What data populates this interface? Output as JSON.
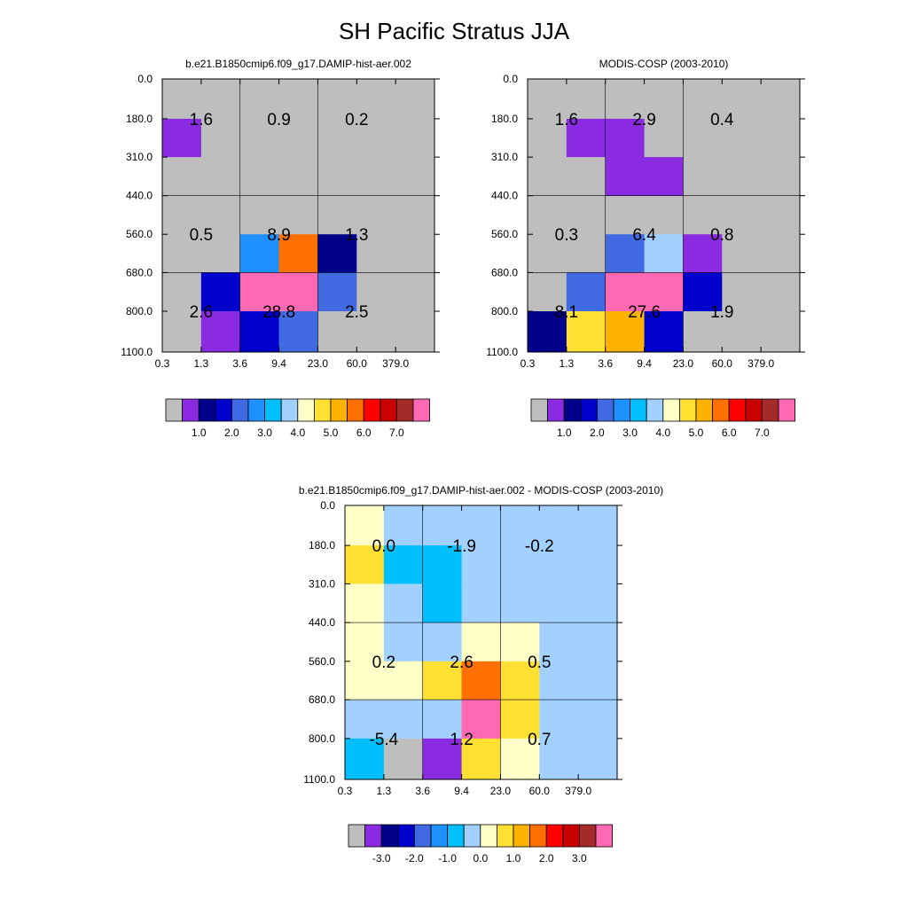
{
  "title": "SH Pacific Stratus JJA",
  "colors": {
    "gray": "#bebebe",
    "palette": [
      "#8a2be2",
      "#00008b",
      "#0000cd",
      "#4169e1",
      "#1e90ff",
      "#00bfff",
      "#a3d1ff",
      "#ffffc8",
      "#ffe033",
      "#ffb200",
      "#ff7000",
      "#ff0000",
      "#c80000",
      "#a52a2a",
      "#ff69b4"
    ]
  },
  "chart_data": [
    {
      "type": "heatmap",
      "title": "b.e21.B1850cmip6.f09_g17.DAMIP-hist-aer.002",
      "x_ticks": [
        "0.3",
        "1.3",
        "3.6",
        "9.4",
        "23.0",
        "60.0",
        "379.0"
      ],
      "y_ticks": [
        "0.0",
        "180.0",
        "310.0",
        "440.0",
        "560.0",
        "680.0",
        "800.0",
        "1100.0"
      ],
      "cells": [
        [
          0,
          0,
          0,
          0,
          0,
          0,
          0
        ],
        [
          1,
          0,
          0,
          0,
          0,
          0,
          0
        ],
        [
          0,
          0,
          0,
          0,
          0,
          0,
          0
        ],
        [
          0,
          0,
          0,
          0,
          0,
          0,
          0
        ],
        [
          0,
          0,
          5,
          11,
          2,
          0,
          0
        ],
        [
          0,
          3,
          15,
          15,
          4,
          0,
          0
        ],
        [
          0,
          1,
          3,
          4,
          0,
          0,
          0
        ]
      ],
      "labels": [
        {
          "x": "1.3",
          "y": "180.0",
          "text": "1.6"
        },
        {
          "x": "9.4",
          "y": "180.0",
          "text": "0.9"
        },
        {
          "x": "60.0",
          "y": "180.0",
          "text": "0.2"
        },
        {
          "x": "1.3",
          "y": "560.0",
          "text": "0.5"
        },
        {
          "x": "9.4",
          "y": "560.0",
          "text": "8.9"
        },
        {
          "x": "60.0",
          "y": "560.0",
          "text": "1.3"
        },
        {
          "x": "1.3",
          "y": "800.0",
          "text": "2.6"
        },
        {
          "x": "9.4",
          "y": "800.0",
          "text": "28.8"
        },
        {
          "x": "60.0",
          "y": "800.0",
          "text": "2.5"
        }
      ],
      "colorbar_ticks": [
        "1.0",
        "2.0",
        "3.0",
        "4.0",
        "5.0",
        "6.0",
        "7.0"
      ]
    },
    {
      "type": "heatmap",
      "title": "MODIS-COSP (2003-2010)",
      "x_ticks": [
        "0.3",
        "1.3",
        "3.6",
        "9.4",
        "23.0",
        "60.0",
        "379.0"
      ],
      "y_ticks": [
        "0.0",
        "180.0",
        "310.0",
        "440.0",
        "560.0",
        "680.0",
        "800.0",
        "1100.0"
      ],
      "cells": [
        [
          0,
          0,
          0,
          0,
          0,
          0,
          0
        ],
        [
          0,
          1,
          1,
          0,
          0,
          0,
          0
        ],
        [
          0,
          0,
          1,
          1,
          0,
          0,
          0
        ],
        [
          0,
          0,
          0,
          0,
          0,
          0,
          0
        ],
        [
          0,
          0,
          4,
          7,
          1,
          0,
          0
        ],
        [
          0,
          4,
          15,
          15,
          3,
          0,
          0
        ],
        [
          2,
          9,
          10,
          3,
          0,
          0,
          0
        ]
      ],
      "labels": [
        {
          "x": "1.3",
          "y": "180.0",
          "text": "1.6"
        },
        {
          "x": "9.4",
          "y": "180.0",
          "text": "2.9"
        },
        {
          "x": "60.0",
          "y": "180.0",
          "text": "0.4"
        },
        {
          "x": "1.3",
          "y": "560.0",
          "text": "0.3"
        },
        {
          "x": "9.4",
          "y": "560.0",
          "text": "6.4"
        },
        {
          "x": "60.0",
          "y": "560.0",
          "text": "0.8"
        },
        {
          "x": "1.3",
          "y": "800.0",
          "text": "8.1"
        },
        {
          "x": "9.4",
          "y": "800.0",
          "text": "27.6"
        },
        {
          "x": "60.0",
          "y": "800.0",
          "text": "1.9"
        }
      ],
      "colorbar_ticks": [
        "1.0",
        "2.0",
        "3.0",
        "4.0",
        "5.0",
        "6.0",
        "7.0"
      ]
    },
    {
      "type": "heatmap",
      "title": "b.e21.B1850cmip6.f09_g17.DAMIP-hist-aer.002 - MODIS-COSP (2003-2010)",
      "x_ticks": [
        "0.3",
        "1.3",
        "3.6",
        "9.4",
        "23.0",
        "60.0",
        "379.0"
      ],
      "y_ticks": [
        "0.0",
        "180.0",
        "310.0",
        "440.0",
        "560.0",
        "680.0",
        "800.0",
        "1100.0"
      ],
      "cells": [
        [
          8,
          7,
          7,
          7,
          7,
          7,
          7
        ],
        [
          9,
          6,
          6,
          7,
          7,
          7,
          7
        ],
        [
          8,
          7,
          6,
          7,
          7,
          7,
          7
        ],
        [
          8,
          7,
          7,
          8,
          8,
          7,
          7
        ],
        [
          8,
          8,
          9,
          11,
          9,
          7,
          7
        ],
        [
          7,
          7,
          7,
          15,
          9,
          7,
          7
        ],
        [
          6,
          0,
          1,
          9,
          8,
          7,
          7
        ]
      ],
      "labels": [
        {
          "x": "1.3",
          "y": "180.0",
          "text": "0.0"
        },
        {
          "x": "9.4",
          "y": "180.0",
          "text": "-1.9"
        },
        {
          "x": "60.0",
          "y": "180.0",
          "text": "-0.2"
        },
        {
          "x": "1.3",
          "y": "560.0",
          "text": "0.2"
        },
        {
          "x": "9.4",
          "y": "560.0",
          "text": "2.6"
        },
        {
          "x": "60.0",
          "y": "560.0",
          "text": "0.5"
        },
        {
          "x": "1.3",
          "y": "800.0",
          "text": "-5.4"
        },
        {
          "x": "9.4",
          "y": "800.0",
          "text": "1.2"
        },
        {
          "x": "60.0",
          "y": "800.0",
          "text": "0.7"
        }
      ],
      "colorbar_ticks": [
        "-3.0",
        "-2.0",
        "-1.0",
        "0.0",
        "1.0",
        "2.0",
        "3.0"
      ]
    }
  ]
}
